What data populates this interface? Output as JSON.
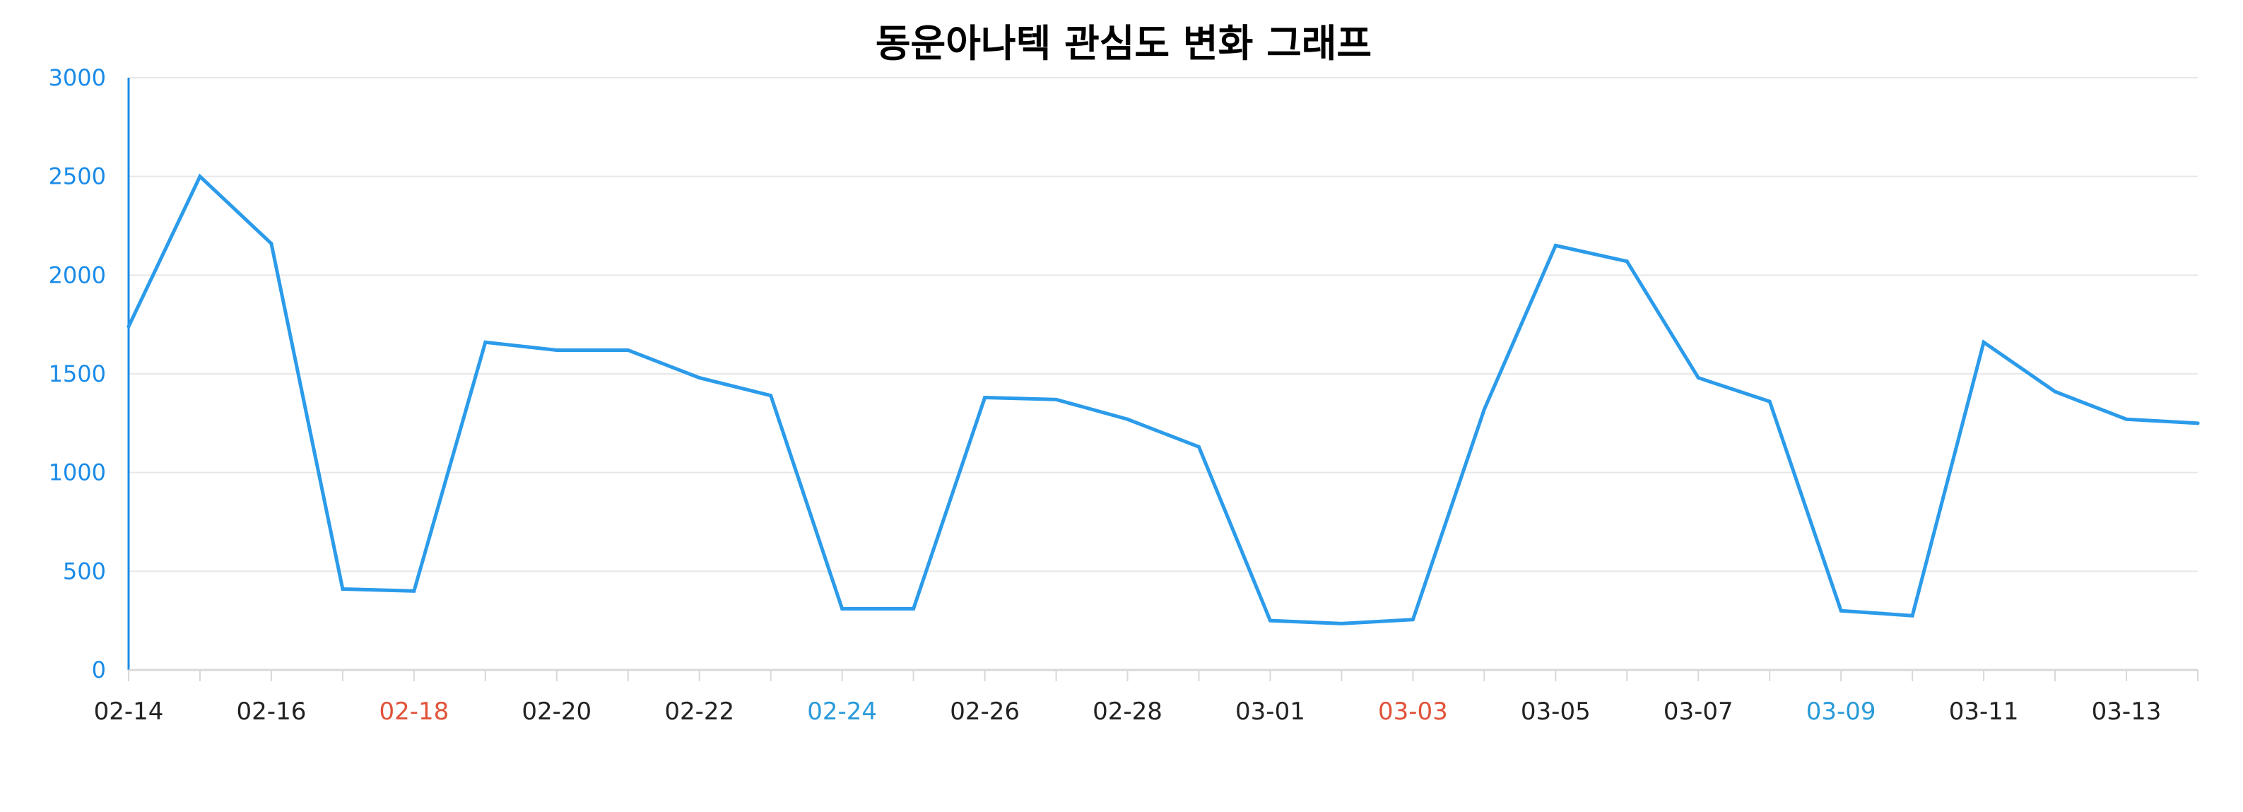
{
  "chart_data": {
    "type": "line",
    "title": "동운아나텍 관심도 변화 그래프",
    "xlabel": "",
    "ylabel": "",
    "ylim": [
      0,
      3000
    ],
    "yticks": [
      0,
      500,
      1000,
      1500,
      2000,
      2500,
      3000
    ],
    "x": [
      "02-14",
      "02-15",
      "02-16",
      "02-17",
      "02-18",
      "02-19",
      "02-20",
      "02-21",
      "02-22",
      "02-23",
      "02-24",
      "02-25",
      "02-26",
      "02-27",
      "02-28",
      "02-29",
      "03-01",
      "03-02",
      "03-03",
      "03-04",
      "03-05",
      "03-06",
      "03-07",
      "03-08",
      "03-09",
      "03-10",
      "03-11",
      "03-12",
      "03-13",
      "03-14"
    ],
    "xtick_labels": [
      "02-14",
      "02-16",
      "02-18",
      "02-20",
      "02-22",
      "02-24",
      "02-26",
      "02-28",
      "03-01",
      "03-03",
      "03-05",
      "03-07",
      "03-09",
      "03-11",
      "03-13"
    ],
    "series": [
      {
        "values": [
          1740,
          2500,
          2160,
          410,
          400,
          1660,
          1620,
          1620,
          1480,
          1390,
          310,
          310,
          1380,
          1370,
          1270,
          1130,
          250,
          235,
          255,
          1320,
          2150,
          2070,
          1480,
          1360,
          300,
          275,
          1660,
          1410,
          1270,
          1250
        ]
      }
    ],
    "grid": true,
    "legend": "none",
    "colors": {
      "title": "#1a8be8",
      "line": "#2b9bea",
      "y_axis": "#1a8be8",
      "y_ticks": "#1a8be8",
      "x_ticks": "#222222",
      "x_tick_red": "#e0533a",
      "x_tick_blue": "#2a9ad8",
      "grid": "#e8e8e8",
      "x_axis": "#d8d8d8"
    },
    "highlighted_ticks": {
      "red": [
        "02-18",
        "03-03"
      ],
      "blue": [
        "02-24",
        "03-09"
      ]
    }
  }
}
